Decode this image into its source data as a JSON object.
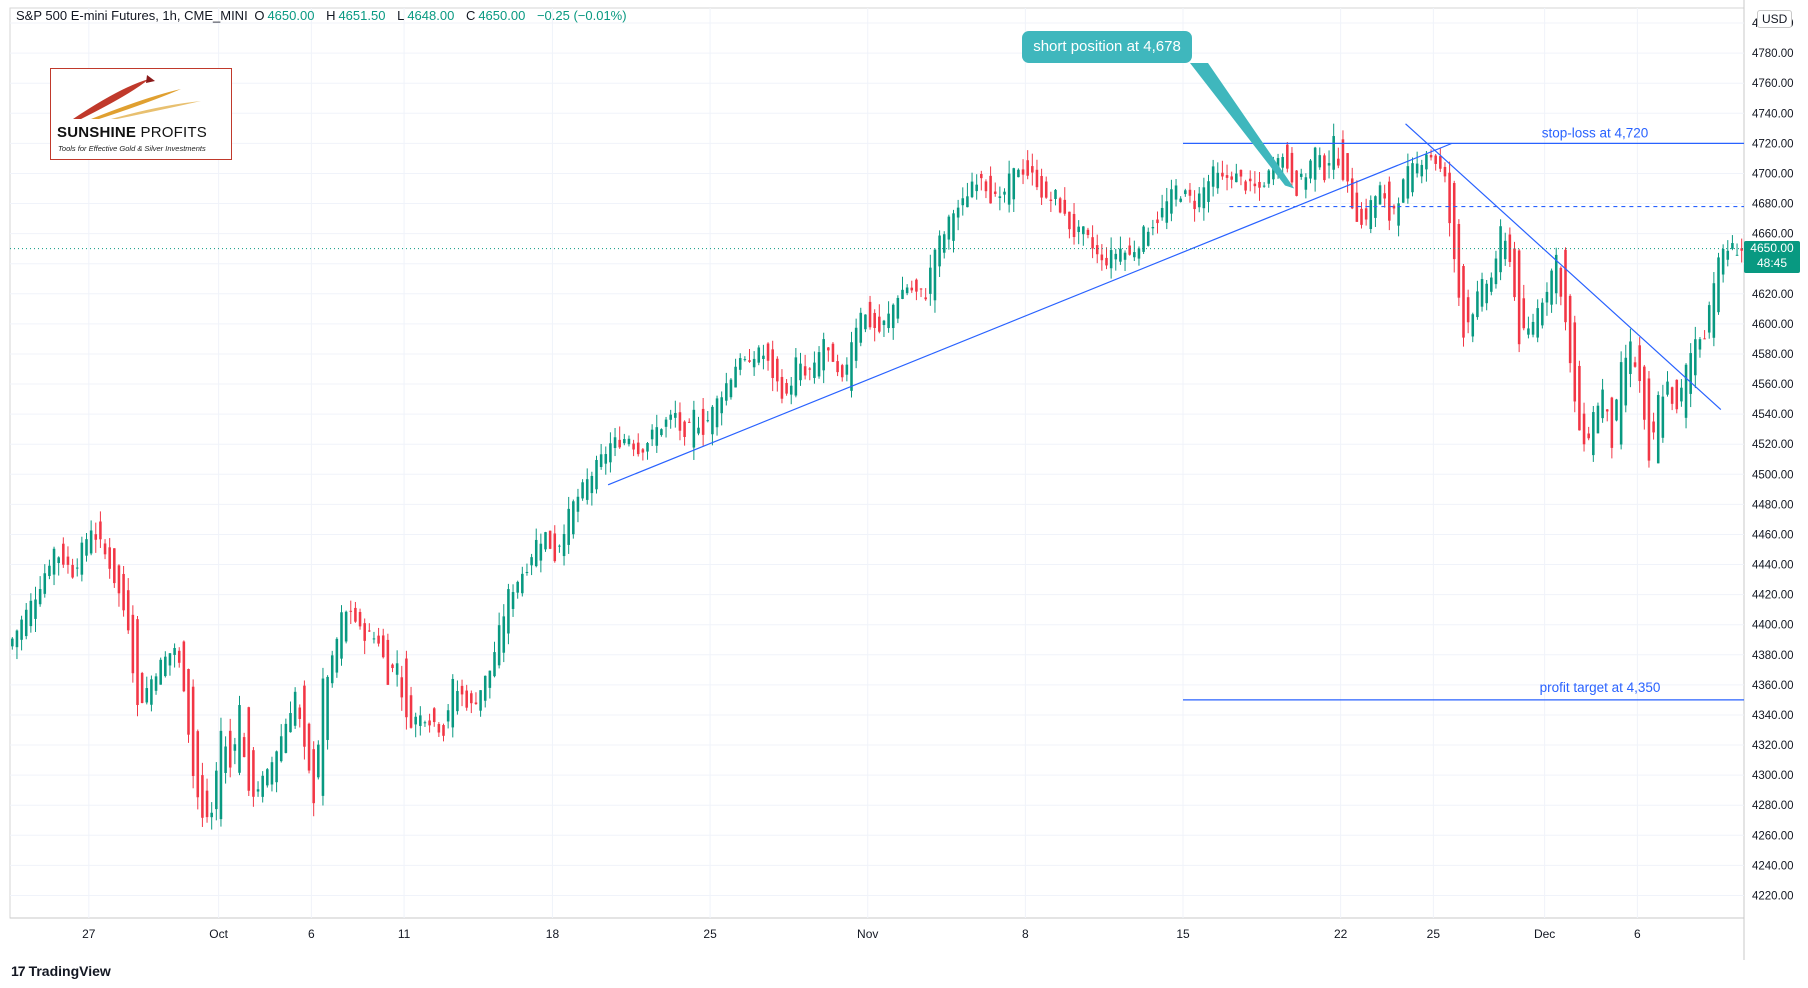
{
  "header": {
    "title": "S&P 500 E-mini Futures, 1h, CME_MINI",
    "o_label": "O",
    "o_value": "4650.00",
    "h_label": "H",
    "h_value": "4651.50",
    "l_label": "L",
    "l_value": "4648.00",
    "c_label": "C",
    "c_value": "4650.00",
    "change": "−0.25 (−0.01%)"
  },
  "currency": "USD",
  "logo": {
    "brand_bold": "SUNSHINE",
    "brand_thin": " PROFITS",
    "tagline": "Tools for Effective Gold & Silver Investments"
  },
  "callout": "short position at 4,678",
  "annotations": {
    "stop_loss": "stop-loss at 4,720",
    "profit_target": "profit target at 4,350"
  },
  "last_price": {
    "price": "4650.00",
    "countdown": "48:45"
  },
  "footer": {
    "brand": "TradingView",
    "mark": "17"
  },
  "colors": {
    "up": "#089981",
    "down": "#f23645",
    "line": "#2962ff",
    "callout": "#3fb7bd"
  },
  "chart_data": {
    "type": "candlestick",
    "title": "S&P 500 E-mini Futures, 1h, CME_MINI",
    "ylim": [
      4205,
      4810
    ],
    "y_ticks": [
      4220,
      4240,
      4260,
      4280,
      4300,
      4320,
      4340,
      4360,
      4380,
      4400,
      4420,
      4440,
      4460,
      4480,
      4500,
      4520,
      4540,
      4560,
      4580,
      4600,
      4620,
      4640,
      4660,
      4680,
      4700,
      4720,
      4740,
      4760,
      4780,
      4800
    ],
    "x_ticks": [
      {
        "label": "27",
        "i": 8
      },
      {
        "label": "Oct",
        "i": 22
      },
      {
        "label": "6",
        "i": 32
      },
      {
        "label": "11",
        "i": 42
      },
      {
        "label": "18",
        "i": 58
      },
      {
        "label": "25",
        "i": 75
      },
      {
        "label": "Nov",
        "i": 92
      },
      {
        "label": "8",
        "i": 109
      },
      {
        "label": "15",
        "i": 126
      },
      {
        "label": "22",
        "i": 143
      },
      {
        "label": "25",
        "i": 153
      },
      {
        "label": "Dec",
        "i": 165
      },
      {
        "label": "6",
        "i": 175
      }
    ],
    "n_slots": 187,
    "close_path": [
      [
        0,
        4385
      ],
      [
        3,
        4420
      ],
      [
        5,
        4450
      ],
      [
        7,
        4435
      ],
      [
        9,
        4465
      ],
      [
        11,
        4440
      ],
      [
        13,
        4400
      ],
      [
        14,
        4345
      ],
      [
        16,
        4370
      ],
      [
        18,
        4385
      ],
      [
        19,
        4360
      ],
      [
        20,
        4300
      ],
      [
        21,
        4270
      ],
      [
        22,
        4275
      ],
      [
        23,
        4330
      ],
      [
        24,
        4305
      ],
      [
        25,
        4345
      ],
      [
        26,
        4285
      ],
      [
        28,
        4300
      ],
      [
        30,
        4335
      ],
      [
        31,
        4355
      ],
      [
        32,
        4315
      ],
      [
        33,
        4285
      ],
      [
        34,
        4360
      ],
      [
        35,
        4375
      ],
      [
        36,
        4405
      ],
      [
        37,
        4410
      ],
      [
        38,
        4395
      ],
      [
        40,
        4390
      ],
      [
        41,
        4365
      ],
      [
        42,
        4375
      ],
      [
        43,
        4335
      ],
      [
        45,
        4340
      ],
      [
        47,
        4330
      ],
      [
        48,
        4360
      ],
      [
        50,
        4345
      ],
      [
        52,
        4370
      ],
      [
        53,
        4395
      ],
      [
        54,
        4420
      ],
      [
        56,
        4440
      ],
      [
        57,
        4455
      ],
      [
        58,
        4460
      ],
      [
        59,
        4445
      ],
      [
        60,
        4465
      ],
      [
        61,
        4480
      ],
      [
        62,
        4490
      ],
      [
        64,
        4510
      ],
      [
        65,
        4520
      ],
      [
        67,
        4525
      ],
      [
        68,
        4515
      ],
      [
        70,
        4530
      ],
      [
        72,
        4540
      ],
      [
        73,
        4520
      ],
      [
        74,
        4540
      ],
      [
        75,
        4530
      ],
      [
        77,
        4555
      ],
      [
        78,
        4565
      ],
      [
        79,
        4580
      ],
      [
        80,
        4570
      ],
      [
        81,
        4585
      ],
      [
        83,
        4560
      ],
      [
        84,
        4550
      ],
      [
        85,
        4575
      ],
      [
        86,
        4565
      ],
      [
        87,
        4570
      ],
      [
        88,
        4590
      ],
      [
        89,
        4570
      ],
      [
        90,
        4560
      ],
      [
        91,
        4590
      ],
      [
        92,
        4610
      ],
      [
        93,
        4600
      ],
      [
        94,
        4595
      ],
      [
        95,
        4605
      ],
      [
        96,
        4620
      ],
      [
        97,
        4625
      ],
      [
        98,
        4620
      ],
      [
        99,
        4620
      ],
      [
        100,
        4650
      ],
      [
        101,
        4660
      ],
      [
        102,
        4675
      ],
      [
        103,
        4680
      ],
      [
        104,
        4695
      ],
      [
        105,
        4700
      ],
      [
        106,
        4685
      ],
      [
        107,
        4680
      ],
      [
        108,
        4695
      ],
      [
        109,
        4705
      ],
      [
        110,
        4700
      ],
      [
        111,
        4695
      ],
      [
        112,
        4680
      ],
      [
        113,
        4685
      ],
      [
        114,
        4670
      ],
      [
        115,
        4660
      ],
      [
        116,
        4660
      ],
      [
        117,
        4650
      ],
      [
        118,
        4640
      ],
      [
        119,
        4645
      ],
      [
        120,
        4650
      ],
      [
        121,
        4645
      ],
      [
        122,
        4655
      ],
      [
        123,
        4665
      ],
      [
        124,
        4670
      ],
      [
        125,
        4680
      ],
      [
        126,
        4690
      ],
      [
        127,
        4685
      ],
      [
        128,
        4680
      ],
      [
        130,
        4700
      ],
      [
        131,
        4695
      ],
      [
        132,
        4700
      ],
      [
        133,
        4695
      ],
      [
        134,
        4690
      ],
      [
        135,
        4690
      ],
      [
        136,
        4700
      ],
      [
        137,
        4715
      ],
      [
        138,
        4705
      ],
      [
        139,
        4690
      ],
      [
        140,
        4700
      ],
      [
        141,
        4715
      ],
      [
        142,
        4700
      ],
      [
        143,
        4720
      ],
      [
        144,
        4700
      ],
      [
        145,
        4680
      ],
      [
        146,
        4665
      ],
      [
        147,
        4680
      ],
      [
        148,
        4690
      ],
      [
        149,
        4670
      ],
      [
        150,
        4685
      ],
      [
        151,
        4700
      ],
      [
        152,
        4705
      ],
      [
        153,
        4715
      ],
      [
        154,
        4708
      ],
      [
        155,
        4695
      ],
      [
        156,
        4640
      ],
      [
        157,
        4595
      ],
      [
        158,
        4610
      ],
      [
        159,
        4625
      ],
      [
        160,
        4630
      ],
      [
        161,
        4660
      ],
      [
        162,
        4645
      ],
      [
        163,
        4590
      ],
      [
        164,
        4595
      ],
      [
        165,
        4610
      ],
      [
        166,
        4625
      ],
      [
        167,
        4645
      ],
      [
        168,
        4600
      ],
      [
        169,
        4545
      ],
      [
        170,
        4515
      ],
      [
        171,
        4540
      ],
      [
        172,
        4555
      ],
      [
        173,
        4520
      ],
      [
        174,
        4570
      ],
      [
        175,
        4585
      ],
      [
        176,
        4560
      ],
      [
        177,
        4505
      ],
      [
        178,
        4550
      ],
      [
        179,
        4560
      ],
      [
        180,
        4540
      ],
      [
        181,
        4570
      ],
      [
        182,
        4590
      ],
      [
        183,
        4595
      ],
      [
        184,
        4630
      ],
      [
        185,
        4650
      ],
      [
        186,
        4650
      ]
    ],
    "lines": [
      {
        "name": "stop-loss",
        "y": 4720,
        "from_i": 126,
        "style": "solid"
      },
      {
        "name": "entry",
        "y": 4678,
        "from_i": 131,
        "style": "dashed"
      },
      {
        "name": "profit target",
        "y": 4350,
        "from_i": 126,
        "style": "solid"
      },
      {
        "name": "support trendline",
        "from": [
          64,
          4493
        ],
        "to": [
          155,
          4720
        ]
      },
      {
        "name": "downtrend line",
        "from": [
          150,
          4733
        ],
        "to": [
          184,
          4543
        ]
      }
    ]
  }
}
